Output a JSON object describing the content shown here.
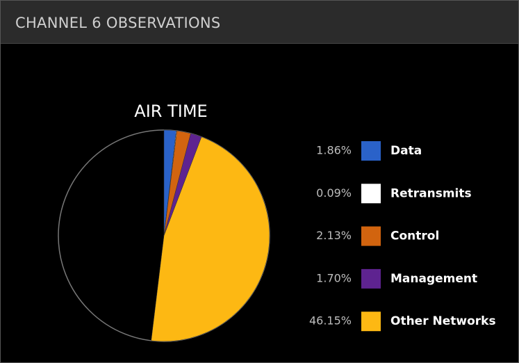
{
  "header": {
    "title": "CHANNEL 6 OBSERVATIONS"
  },
  "chart_data": {
    "type": "pie",
    "title": "AIR TIME",
    "categories": [
      "Data",
      "Retransmits",
      "Control",
      "Management",
      "Other Networks"
    ],
    "values": [
      1.86,
      0.09,
      2.13,
      1.7,
      46.15
    ],
    "value_labels": [
      "1.86%",
      "0.09%",
      "2.13%",
      "1.70%",
      "46.15%"
    ],
    "colors": [
      "#2a62c9",
      "#ffffff",
      "#d2640f",
      "#5e2390",
      "#fdb813"
    ]
  }
}
